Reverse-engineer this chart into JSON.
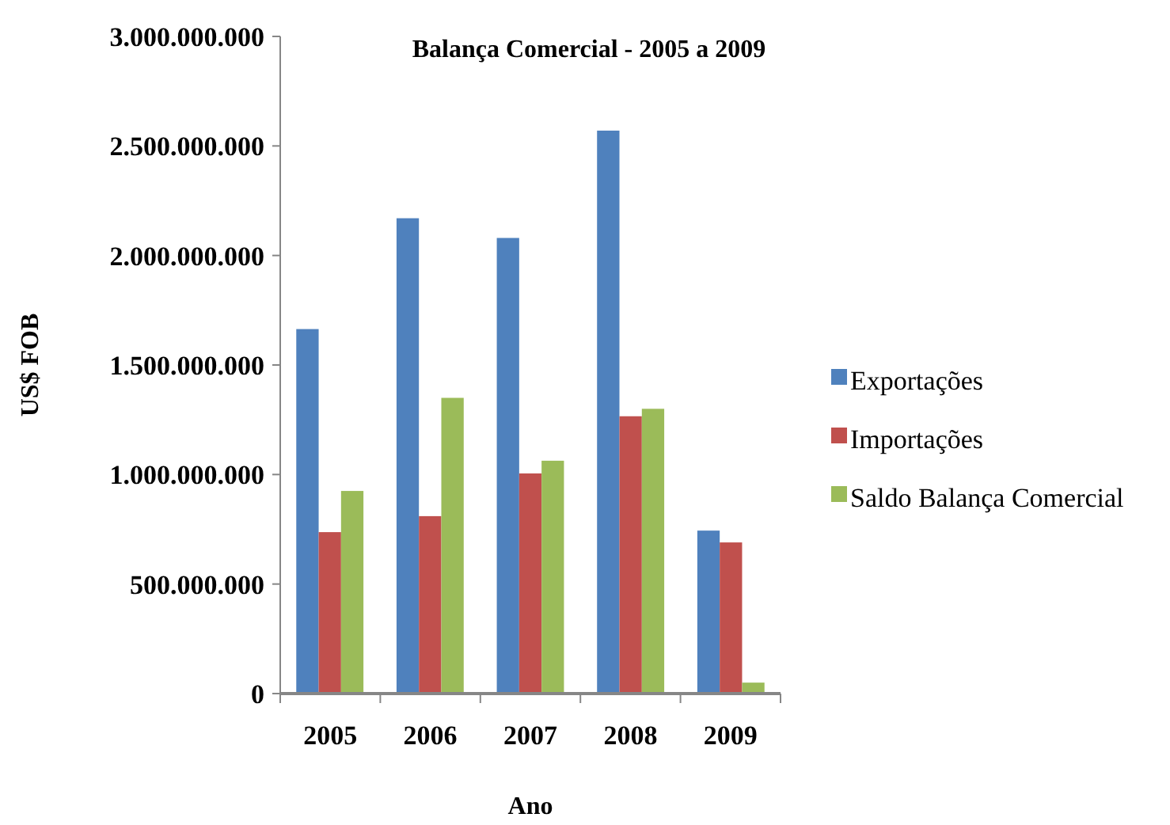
{
  "chart_data": {
    "type": "bar",
    "title": "Balança Comercial - 2005 a 2009",
    "xlabel": "Ano",
    "ylabel": "US$ FOB",
    "categories": [
      "2005",
      "2006",
      "2007",
      "2008",
      "2009"
    ],
    "series": [
      {
        "name": "Exportações",
        "color": "#4f81bd",
        "values": [
          1664000000,
          2170000000,
          2080000000,
          2570000000,
          744000000
        ]
      },
      {
        "name": "Importações",
        "color": "#c0504d",
        "values": [
          737000000,
          810000000,
          1005000000,
          1266000000,
          690000000
        ]
      },
      {
        "name": "Saldo Balança Comercial",
        "color": "#9bbb59",
        "values": [
          925000000,
          1350000000,
          1063000000,
          1300000000,
          50000000
        ]
      }
    ],
    "ylim": [
      0,
      3000000000
    ],
    "yticks": [
      {
        "value": 0,
        "label": "0"
      },
      {
        "value": 500000000,
        "label": "500.000.000"
      },
      {
        "value": 1000000000,
        "label": "1.000.000.000"
      },
      {
        "value": 1500000000,
        "label": "1.500.000.000"
      },
      {
        "value": 2000000000,
        "label": "2.000.000.000"
      },
      {
        "value": 2500000000,
        "label": "2.500.000.000"
      },
      {
        "value": 3000000000,
        "label": "3.000.000.000"
      }
    ],
    "grid": false,
    "legend": "right"
  }
}
